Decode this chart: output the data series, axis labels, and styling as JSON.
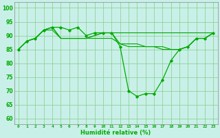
{
  "xlabel": "Humidité relative (%)",
  "bg_color": "#c8f0e8",
  "grid_color": "#88cc88",
  "line_color": "#00aa00",
  "xlim": [
    -0.5,
    23.5
  ],
  "ylim": [
    58,
    102
  ],
  "yticks": [
    60,
    65,
    70,
    75,
    80,
    85,
    90,
    95,
    100
  ],
  "xticks": [
    0,
    1,
    2,
    3,
    4,
    5,
    6,
    7,
    8,
    9,
    10,
    11,
    12,
    13,
    14,
    15,
    16,
    17,
    18,
    19,
    20,
    21,
    22,
    23
  ],
  "line1_x": [
    0,
    1,
    2,
    3,
    4,
    5,
    6,
    7,
    8,
    9,
    10,
    11,
    12,
    13,
    14,
    15,
    16,
    17,
    18,
    19,
    20,
    21,
    22,
    23
  ],
  "line1_y": [
    85,
    88,
    89,
    92,
    93,
    93,
    92,
    93,
    90,
    91,
    91,
    91,
    86,
    70,
    68,
    69,
    69,
    74,
    81,
    85,
    86,
    89,
    89,
    91
  ],
  "line2_x": [
    0,
    1,
    2,
    3,
    4,
    5,
    6,
    7,
    8,
    9,
    10,
    11,
    12,
    13,
    14,
    15,
    16,
    17,
    18,
    19,
    20,
    21,
    22,
    23
  ],
  "line2_y": [
    85,
    88,
    89,
    92,
    92,
    89,
    89,
    89,
    89,
    89,
    89,
    89,
    87,
    87,
    87,
    86,
    86,
    86,
    85,
    85,
    86,
    89,
    89,
    91
  ],
  "line3_x": [
    0,
    1,
    2,
    3,
    4,
    5,
    6,
    7,
    8,
    9,
    10,
    11,
    12,
    13,
    14,
    15,
    16,
    17,
    18,
    19,
    20,
    21,
    22,
    23
  ],
  "line3_y": [
    85,
    88,
    89,
    92,
    93,
    89,
    89,
    89,
    89,
    90,
    91,
    91,
    91,
    91,
    91,
    91,
    91,
    91,
    91,
    91,
    91,
    91,
    91,
    91
  ],
  "line4_x": [
    0,
    1,
    2,
    3,
    4,
    5,
    6,
    7,
    8,
    9,
    10,
    11,
    12,
    13,
    14,
    15,
    16,
    17,
    18,
    19,
    20,
    21,
    22,
    23
  ],
  "line4_y": [
    85,
    88,
    89,
    92,
    93,
    89,
    89,
    89,
    89,
    90,
    91,
    91,
    87,
    86,
    86,
    86,
    86,
    85,
    85,
    85,
    86,
    89,
    89,
    91
  ]
}
